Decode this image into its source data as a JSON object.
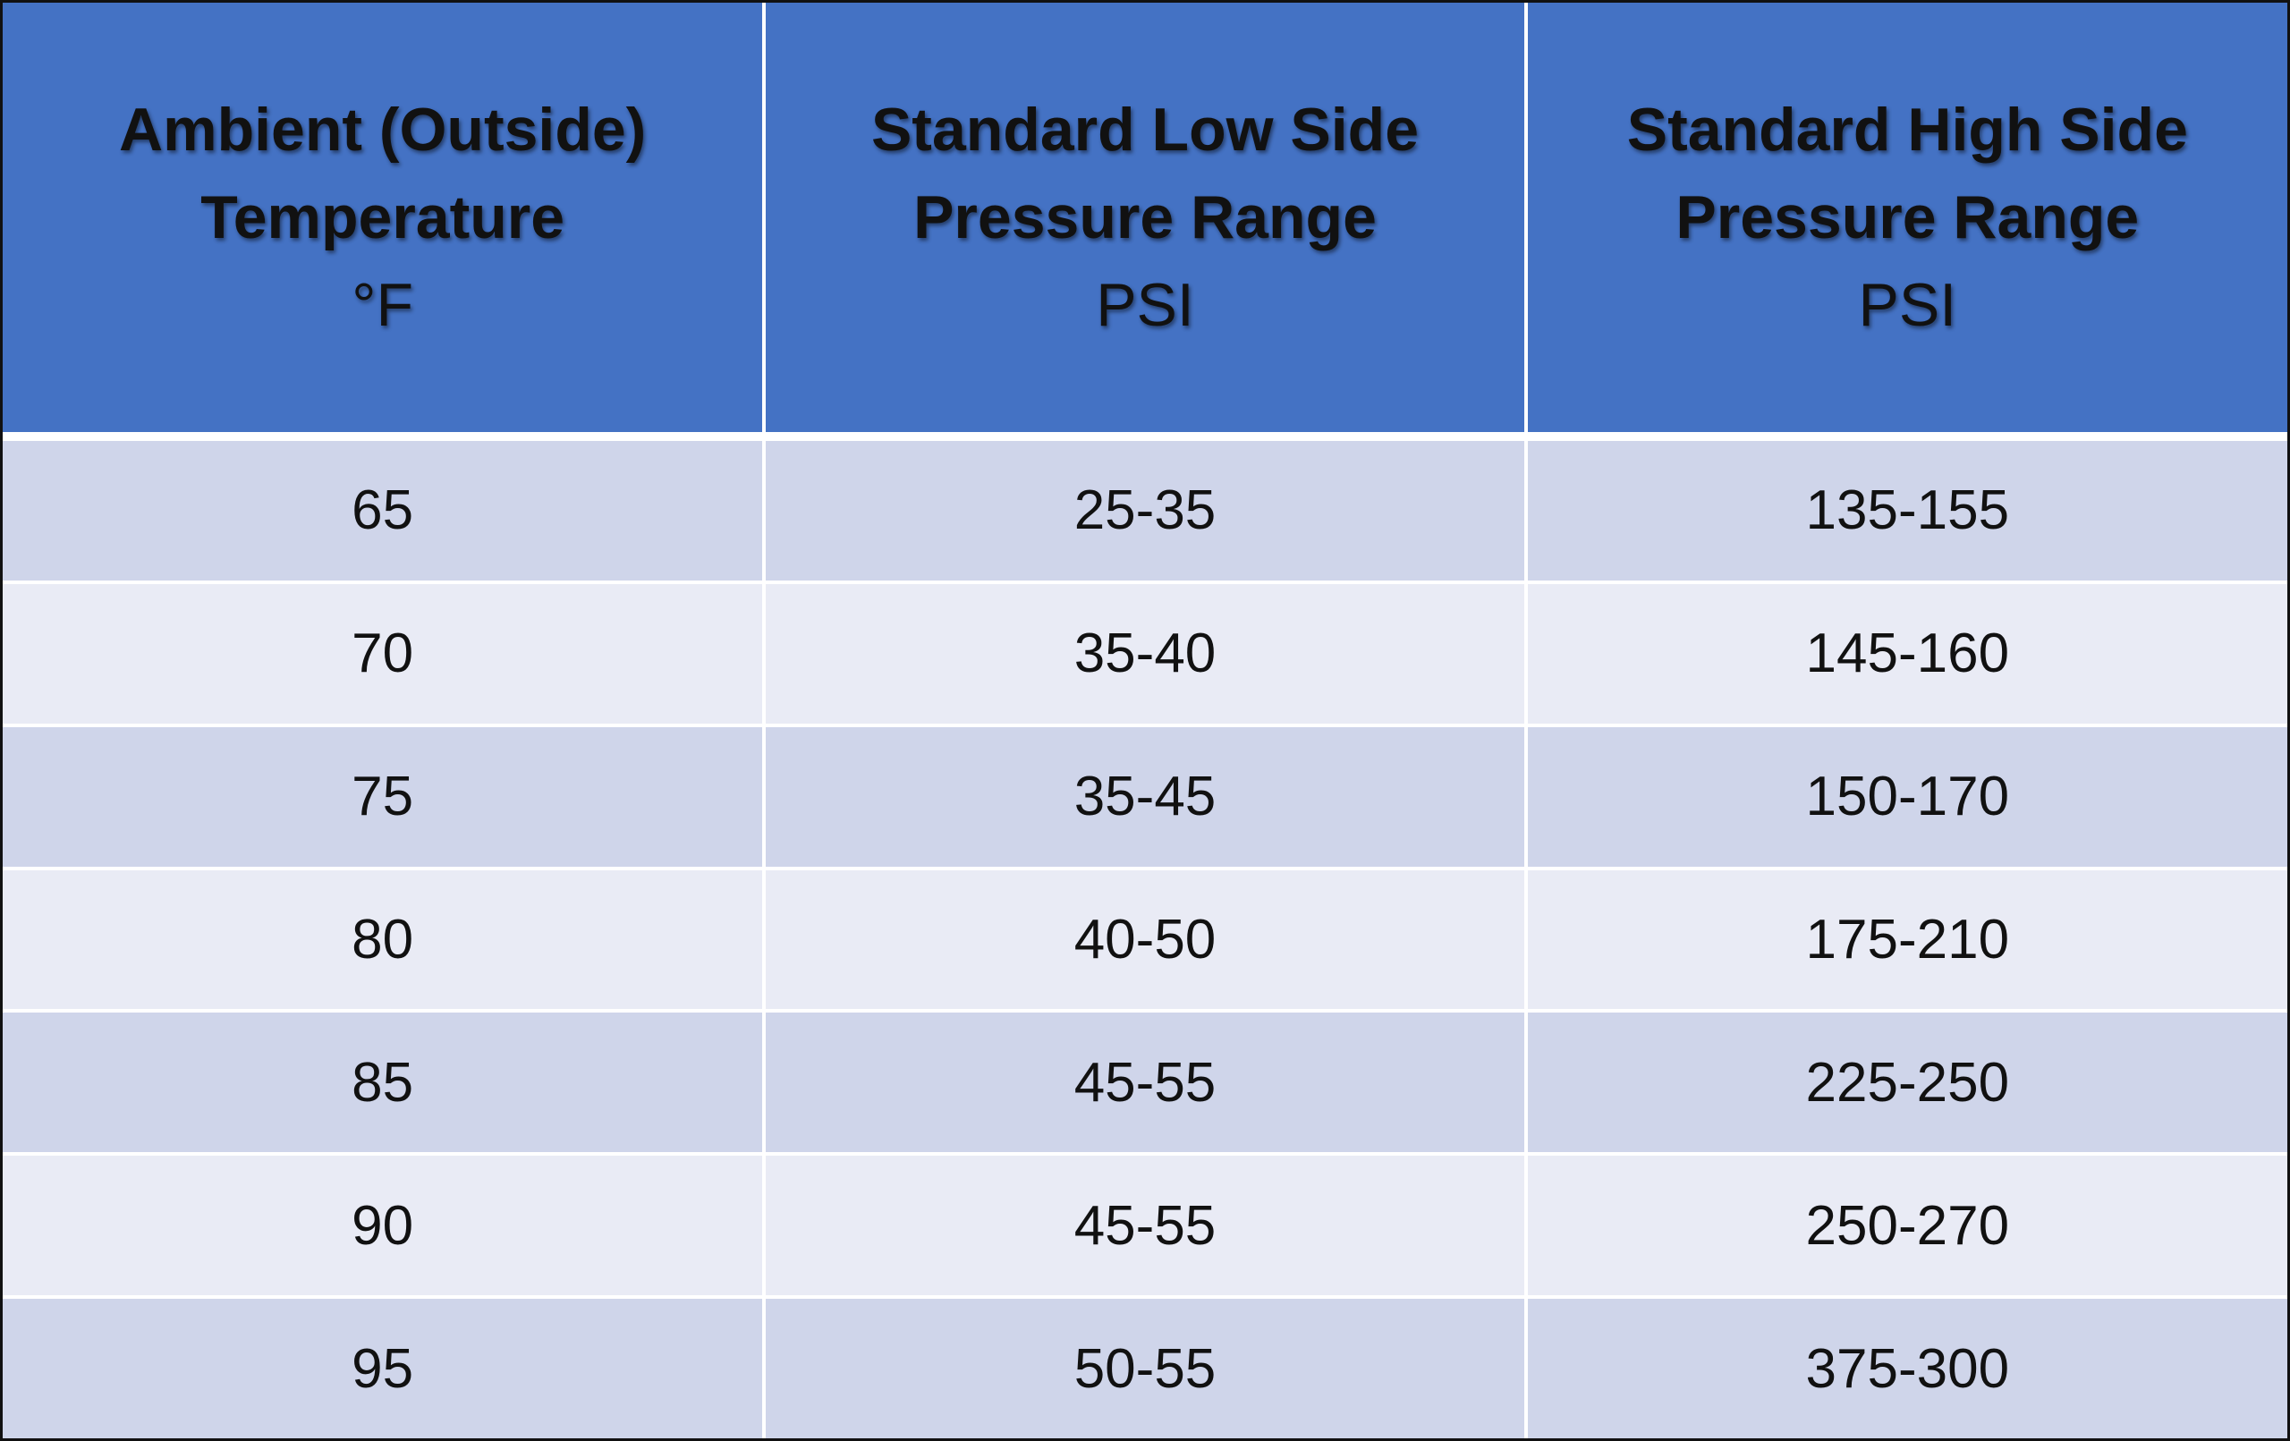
{
  "table": {
    "header": [
      {
        "title_lines": [
          "Ambient (Outside)",
          "Temperature"
        ],
        "unit": "°F"
      },
      {
        "title_lines": [
          "Standard Low Side",
          "Pressure Range"
        ],
        "unit": "PSI"
      },
      {
        "title_lines": [
          "Standard High Side",
          "Pressure Range"
        ],
        "unit": "PSI"
      }
    ],
    "rows": [
      [
        65,
        "25-35",
        "135-155"
      ],
      [
        70,
        "35-40",
        "145-160"
      ],
      [
        75,
        "35-45",
        "150-170"
      ],
      [
        80,
        "40-50",
        "175-210"
      ],
      [
        85,
        "45-55",
        "225-250"
      ],
      [
        90,
        "45-55",
        "250-270"
      ],
      [
        95,
        "50-55",
        "375-300"
      ]
    ]
  }
}
